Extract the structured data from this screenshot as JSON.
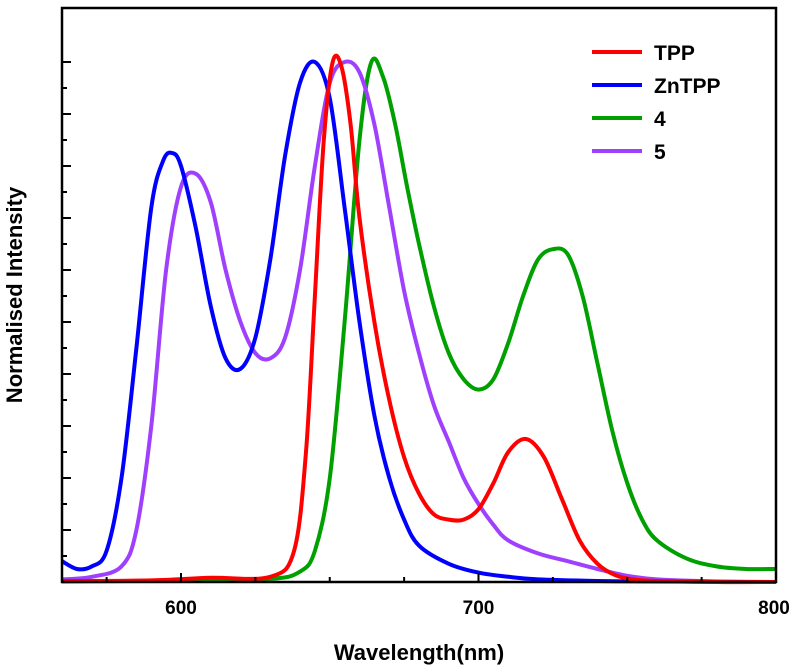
{
  "chart_data": {
    "type": "line",
    "title": "",
    "xlabel": "Wavelength(nm)",
    "ylabel": "Normalised Intensity",
    "xlim": [
      560,
      800
    ],
    "ylim": [
      0,
      1.0
    ],
    "x_ticks": [
      600,
      700,
      800
    ],
    "y_ticks_unlabeled": true,
    "grid": false,
    "legend": "top-right",
    "series": [
      {
        "name": "TPP",
        "color": "#ff0000",
        "x": [
          560,
          590,
          610,
          630,
          638,
          642,
          645,
          648,
          651,
          654,
          657,
          660,
          665,
          670,
          675,
          680,
          685,
          690,
          695,
          700,
          705,
          710,
          716,
          722,
          728,
          734,
          740,
          746,
          752,
          760,
          780,
          800
        ],
        "y": [
          0.002,
          0.003,
          0.008,
          0.01,
          0.06,
          0.25,
          0.55,
          0.85,
          1.0,
          0.99,
          0.88,
          0.7,
          0.5,
          0.35,
          0.24,
          0.17,
          0.13,
          0.12,
          0.12,
          0.14,
          0.19,
          0.25,
          0.275,
          0.24,
          0.16,
          0.08,
          0.035,
          0.013,
          0.005,
          0.002,
          0.0,
          0.0
        ]
      },
      {
        "name": "ZnTPP",
        "color": "#0000ff",
        "x": [
          560,
          565,
          570,
          575,
          580,
          585,
          590,
          594,
          597,
          600,
          605,
          610,
          615,
          620,
          625,
          630,
          635,
          640,
          645,
          650,
          655,
          660,
          665,
          670,
          675,
          680,
          690,
          700,
          710,
          720,
          740,
          760,
          800
        ],
        "y": [
          0.04,
          0.025,
          0.03,
          0.06,
          0.2,
          0.45,
          0.72,
          0.81,
          0.825,
          0.8,
          0.68,
          0.53,
          0.43,
          0.41,
          0.47,
          0.62,
          0.82,
          0.96,
          1.0,
          0.93,
          0.72,
          0.5,
          0.32,
          0.2,
          0.12,
          0.07,
          0.035,
          0.018,
          0.01,
          0.005,
          0.002,
          0.001,
          0.0
        ]
      },
      {
        "name": "4",
        "color": "#00a000",
        "x": [
          560,
          600,
          630,
          640,
          645,
          650,
          655,
          660,
          664,
          668,
          672,
          676,
          680,
          685,
          690,
          695,
          700,
          705,
          710,
          715,
          720,
          725,
          730,
          735,
          740,
          745,
          750,
          755,
          760,
          770,
          780,
          790,
          800
        ],
        "y": [
          0.001,
          0.003,
          0.006,
          0.02,
          0.06,
          0.2,
          0.5,
          0.85,
          1.0,
          0.97,
          0.88,
          0.76,
          0.65,
          0.53,
          0.44,
          0.39,
          0.37,
          0.39,
          0.46,
          0.55,
          0.62,
          0.64,
          0.63,
          0.55,
          0.42,
          0.29,
          0.19,
          0.12,
          0.08,
          0.045,
          0.03,
          0.025,
          0.025
        ]
      },
      {
        "name": "5",
        "color": "#a040ff",
        "x": [
          560,
          570,
          580,
          585,
          590,
          595,
          600,
          605,
          610,
          615,
          620,
          625,
          630,
          635,
          640,
          645,
          650,
          655,
          660,
          665,
          670,
          675,
          680,
          685,
          690,
          695,
          700,
          705,
          710,
          720,
          730,
          740,
          750,
          760,
          780,
          800
        ],
        "y": [
          0.005,
          0.01,
          0.03,
          0.1,
          0.3,
          0.6,
          0.76,
          0.785,
          0.73,
          0.6,
          0.5,
          0.44,
          0.43,
          0.47,
          0.6,
          0.8,
          0.96,
          1.0,
          0.98,
          0.88,
          0.72,
          0.56,
          0.44,
          0.34,
          0.27,
          0.2,
          0.15,
          0.11,
          0.08,
          0.055,
          0.04,
          0.025,
          0.012,
          0.005,
          0.001,
          0.0
        ]
      }
    ]
  }
}
